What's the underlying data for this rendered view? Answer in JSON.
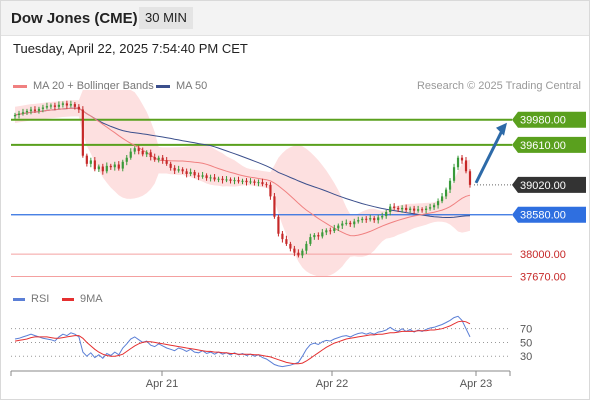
{
  "header": {
    "title": "Dow Jones (CME)",
    "interval": "30 MIN"
  },
  "datetime": "Tuesday, April 22, 2025 7:54:40 PM CET",
  "legend": {
    "ma20": "MA 20 + Bollinger Bands",
    "ma50": "MA 50",
    "rsi": "RSI",
    "ma9": "9MA"
  },
  "research": "Research © 2025 Trading Central",
  "colors": {
    "up": "#3a9a3a",
    "down": "#c62828",
    "ma20": "#f08080",
    "band": "#fde0e0",
    "ma50": "#3b4f8c",
    "resistance": "#5aa01e",
    "support": "#2f6fe0",
    "support_weak": "#f4a0a0",
    "current": "#333333",
    "arrow": "#2d6aa8",
    "rsi": "#5b7fd6",
    "rsi_ma": "#e53030"
  },
  "chart_data": [
    {
      "type": "candlestick",
      "x_labels": [
        "Apr 21",
        "Apr 22",
        "Apr 23"
      ],
      "ylim": [
        37500,
        40300
      ],
      "levels": [
        {
          "value": 39980,
          "label": "39980.00",
          "kind": "resistance"
        },
        {
          "value": 39610,
          "label": "39610.00",
          "kind": "resistance"
        },
        {
          "value": 39020,
          "label": "39020.00",
          "kind": "current"
        },
        {
          "value": 38580,
          "label": "38580.00",
          "kind": "support"
        },
        {
          "value": 38000,
          "label": "38000.00",
          "kind": "support_weak"
        },
        {
          "value": 37670,
          "label": "37670.00",
          "kind": "support_weak"
        }
      ],
      "close": [
        40050,
        40070,
        40090,
        40110,
        40130,
        40110,
        40140,
        40160,
        40180,
        40190,
        40170,
        40200,
        40220,
        40190,
        40210,
        40170,
        40130,
        39450,
        39330,
        39380,
        39250,
        39290,
        39220,
        39300,
        39280,
        39320,
        39260,
        39360,
        39420,
        39510,
        39560,
        39520,
        39470,
        39500,
        39430,
        39390,
        39420,
        39380,
        39330,
        39270,
        39230,
        39250,
        39220,
        39180,
        39210,
        39160,
        39140,
        39160,
        39120,
        39130,
        39100,
        39110,
        39090,
        39100,
        39080,
        39090,
        39070,
        39080,
        39060,
        39070,
        39050,
        39060,
        39030,
        39020,
        38850,
        38550,
        38300,
        38220,
        38150,
        38080,
        38020,
        37980,
        38050,
        38150,
        38250,
        38280,
        38260,
        38320,
        38350,
        38340,
        38380,
        38420,
        38450,
        38460,
        38440,
        38480,
        38500,
        38520,
        38510,
        38530,
        38500,
        38540,
        38560,
        38620,
        38700,
        38680,
        38660,
        38680,
        38650,
        38670,
        38640,
        38660,
        38650,
        38670,
        38690,
        38720,
        38780,
        38850,
        38950,
        39080,
        39280,
        39420,
        39380,
        39220,
        39020
      ]
    },
    {
      "type": "line",
      "series_names": [
        "RSI",
        "9MA"
      ],
      "y_ticks": [
        70,
        50,
        30
      ],
      "ylim": [
        10,
        100
      ],
      "rsi": [
        55,
        56,
        58,
        60,
        62,
        60,
        58,
        56,
        55,
        54,
        52,
        58,
        62,
        60,
        64,
        62,
        58,
        36,
        30,
        35,
        28,
        32,
        27,
        34,
        31,
        36,
        32,
        42,
        48,
        55,
        58,
        54,
        50,
        52,
        46,
        44,
        48,
        45,
        42,
        40,
        38,
        42,
        40,
        37,
        40,
        36,
        35,
        38,
        34,
        36,
        33,
        36,
        33,
        35,
        32,
        35,
        32,
        34,
        31,
        33,
        30,
        32,
        28,
        26,
        22,
        18,
        16,
        15,
        16,
        17,
        19,
        21,
        30,
        40,
        47,
        49,
        47,
        51,
        53,
        52,
        55,
        57,
        59,
        60,
        58,
        61,
        63,
        64,
        62,
        64,
        62,
        65,
        66,
        68,
        72,
        68,
        66,
        70,
        66,
        69,
        65,
        68,
        66,
        69,
        71,
        72,
        74,
        76,
        79,
        82,
        86,
        88,
        82,
        70,
        58
      ],
      "rsi_ma": [
        52,
        53,
        54,
        55,
        57,
        58,
        58,
        58,
        58,
        57,
        56,
        56,
        57,
        58,
        59,
        60,
        60,
        56,
        50,
        45,
        40,
        36,
        33,
        31,
        30,
        30,
        31,
        33,
        37,
        41,
        45,
        48,
        50,
        51,
        51,
        50,
        49,
        48,
        47,
        46,
        45,
        44,
        43,
        42,
        41,
        40,
        39,
        38,
        37,
        37,
        36,
        36,
        35,
        35,
        34,
        34,
        33,
        33,
        33,
        33,
        32,
        32,
        31,
        30,
        29,
        27,
        25,
        23,
        21,
        20,
        19,
        19,
        20,
        23,
        27,
        31,
        35,
        39,
        43,
        46,
        49,
        51,
        53,
        55,
        56,
        57,
        58,
        59,
        60,
        61,
        61,
        62,
        62,
        63,
        64,
        64,
        65,
        66,
        66,
        66,
        66,
        67,
        67,
        67,
        68,
        68,
        69,
        70,
        72,
        74,
        77,
        80,
        81,
        80,
        77
      ]
    }
  ]
}
